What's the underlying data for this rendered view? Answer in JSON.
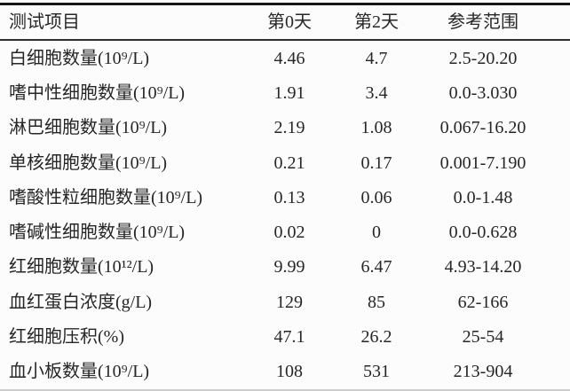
{
  "table": {
    "columns": [
      "测试项目",
      "第0天",
      "第2天",
      "参考范围"
    ],
    "rows": [
      [
        "白细胞数量(10⁹/L)",
        "4.46",
        "4.7",
        "2.5-20.20"
      ],
      [
        "嗜中性细胞数量(10⁹/L)",
        "1.91",
        "3.4",
        "0.0-3.030"
      ],
      [
        "淋巴细胞数量(10⁹/L)",
        "2.19",
        "1.08",
        "0.067-16.20"
      ],
      [
        "单核细胞数量(10⁹/L)",
        "0.21",
        "0.17",
        "0.001-7.190"
      ],
      [
        "嗜酸性粒细胞数量(10⁹/L)",
        "0.13",
        "0.06",
        "0.0-1.48"
      ],
      [
        "嗜碱性细胞数量(10⁹/L)",
        "0.02",
        "0",
        "0.0-0.628"
      ],
      [
        "红细胞数量(10¹²/L)",
        "9.99",
        "6.47",
        "4.93-14.20"
      ],
      [
        "血红蛋白浓度(g/L)",
        "129",
        "85",
        "62-166"
      ],
      [
        "红细胞压积(%)",
        "47.1",
        "26.2",
        "25-54"
      ],
      [
        "血小板数量(10⁹/L)",
        "108",
        "531",
        "213-904"
      ]
    ]
  },
  "colors": {
    "background": "#fcfcfc",
    "text": "#262626",
    "rule_heavy_top": "#161616",
    "rule_header": "#2e2e2e",
    "rule_bottom_light": "#cccccc"
  },
  "chart_data": {
    "type": "table",
    "title": "",
    "columns": [
      "测试项目",
      "第0天",
      "第2天",
      "参考范围"
    ],
    "rows": [
      [
        "白细胞数量(10⁹/L)",
        "4.46",
        "4.7",
        "2.5-20.20"
      ],
      [
        "嗜中性细胞数量(10⁹/L)",
        "1.91",
        "3.4",
        "0.0-3.030"
      ],
      [
        "淋巴细胞数量(10⁹/L)",
        "2.19",
        "1.08",
        "0.067-16.20"
      ],
      [
        "单核细胞数量(10⁹/L)",
        "0.21",
        "0.17",
        "0.001-7.190"
      ],
      [
        "嗜酸性粒细胞数量(10⁹/L)",
        "0.13",
        "0.06",
        "0.0-1.48"
      ],
      [
        "嗜碱性细胞数量(10⁹/L)",
        "0.02",
        "0",
        "0.0-0.628"
      ],
      [
        "红细胞数量(10¹²/L)",
        "9.99",
        "6.47",
        "4.93-14.20"
      ],
      [
        "血红蛋白浓度(g/L)",
        "129",
        "85",
        "62-166"
      ],
      [
        "红细胞压积(%)",
        "47.1",
        "26.2",
        "25-54"
      ],
      [
        "血小板数量(10⁹/L)",
        "108",
        "531",
        "213-904"
      ]
    ]
  }
}
